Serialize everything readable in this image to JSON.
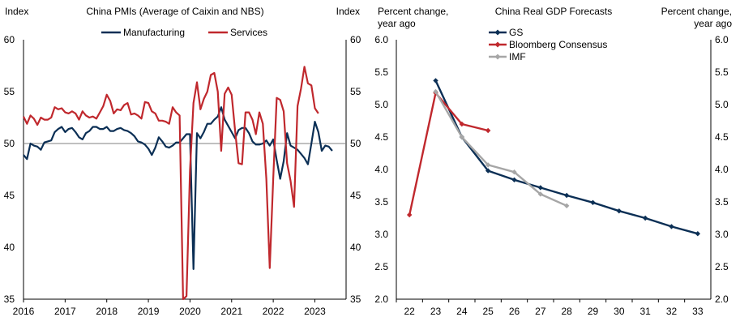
{
  "chart_data": [
    {
      "type": "line",
      "title": "China PMIs (Average of Caixin and NBS)",
      "ylabel_left": "Index",
      "ylabel_right": "Index",
      "ylim": [
        35,
        60
      ],
      "yticks": [
        "35",
        "40",
        "45",
        "50",
        "55",
        "60"
      ],
      "xlim": [
        2016.0,
        2023.75
      ],
      "xticks": [
        {
          "label": "2016",
          "x": 2016
        },
        {
          "label": "2017",
          "x": 2017
        },
        {
          "label": "2018",
          "x": 2018
        },
        {
          "label": "2019",
          "x": 2019
        },
        {
          "label": "2020",
          "x": 2020
        },
        {
          "label": "2021",
          "x": 2021
        },
        {
          "label": "2022",
          "x": 2022
        },
        {
          "label": "2023",
          "x": 2023
        }
      ],
      "reference_line": 50,
      "grid": false,
      "legend": "top-center",
      "series": [
        {
          "name": "Manufacturing",
          "color": "#0b2f55",
          "start": 2016.0,
          "step": 0.0833333,
          "values": [
            48.9,
            48.5,
            50.0,
            49.8,
            49.7,
            49.4,
            50.1,
            50.2,
            50.3,
            51.1,
            51.4,
            51.6,
            51.1,
            51.4,
            51.5,
            51.1,
            50.6,
            50.4,
            51.0,
            51.2,
            51.6,
            51.6,
            51.4,
            51.4,
            51.6,
            51.2,
            51.2,
            51.4,
            51.5,
            51.3,
            51.2,
            51.0,
            50.7,
            50.2,
            50.1,
            49.9,
            49.5,
            48.9,
            49.6,
            50.6,
            50.2,
            49.7,
            49.6,
            49.8,
            50.1,
            50.1,
            50.5,
            50.9,
            50.9,
            37.9,
            51.0,
            50.5,
            51.1,
            51.9,
            51.9,
            52.3,
            52.6,
            53.5,
            52.3,
            51.7,
            51.1,
            50.5,
            51.3,
            51.5,
            51.5,
            51.0,
            50.2,
            49.9,
            49.9,
            50.0,
            50.3,
            49.8,
            50.4,
            48.4,
            46.6,
            48.3,
            51.0,
            49.8,
            49.6,
            49.4,
            49.0,
            48.6,
            48.0,
            50.0,
            52.1,
            51.1,
            49.3,
            49.8,
            49.7,
            49.3
          ]
        },
        {
          "name": "Services",
          "color": "#c0282d",
          "start": 2016.0,
          "step": 0.0833333,
          "values": [
            52.6,
            51.9,
            52.7,
            52.4,
            51.8,
            52.5,
            52.3,
            52.3,
            52.5,
            53.5,
            53.3,
            53.4,
            53.0,
            52.9,
            53.1,
            52.9,
            52.3,
            53.1,
            52.7,
            52.5,
            52.6,
            52.4,
            53.0,
            53.6,
            54.7,
            54.1,
            52.9,
            53.3,
            53.2,
            53.7,
            53.9,
            52.8,
            52.9,
            52.7,
            52.4,
            54.0,
            53.9,
            53.1,
            52.9,
            52.2,
            52.2,
            52.1,
            51.9,
            53.5,
            53.0,
            52.7,
            35.0,
            35.3,
            47.4,
            53.9,
            55.9,
            53.3,
            54.3,
            55.0,
            56.6,
            56.8,
            55.0,
            49.3,
            54.8,
            55.4,
            54.7,
            51.2,
            48.1,
            48.0,
            53.0,
            53.0,
            52.3,
            50.9,
            53.0,
            51.9,
            46.6,
            38.0,
            46.6,
            54.4,
            54.2,
            53.1,
            48.1,
            46.4,
            43.9,
            53.6,
            55.3,
            57.4,
            55.8,
            55.6,
            53.4,
            52.9
          ]
        }
      ]
    },
    {
      "type": "line",
      "title": "China Real GDP Forecasts",
      "ylabel_left": "Percent change, year ago",
      "ylabel_right": "Percent change, year ago",
      "ylim": [
        2.0,
        6.0
      ],
      "yticks": [
        "2.0",
        "2.5",
        "3.0",
        "3.5",
        "4.0",
        "4.5",
        "5.0",
        "5.5",
        "6.0"
      ],
      "categories": [
        "22",
        "23",
        "24",
        "25",
        "26",
        "27",
        "28",
        "29",
        "30",
        "31",
        "32",
        "33"
      ],
      "grid": false,
      "legend": "top-center",
      "series": [
        {
          "name": "GS",
          "color": "#0b2f55",
          "x": [
            23,
            24,
            25,
            26,
            27,
            28,
            29,
            30,
            31,
            32,
            33
          ],
          "values": [
            5.37,
            4.5,
            3.98,
            3.84,
            3.72,
            3.6,
            3.49,
            3.36,
            3.25,
            3.12,
            3.01
          ]
        },
        {
          "name": "Bloomberg Consensus",
          "color": "#c0282d",
          "x": [
            22,
            23,
            24,
            25
          ],
          "values": [
            3.3,
            5.18,
            4.7,
            4.6
          ]
        },
        {
          "name": "IMF",
          "color": "#a6a6a6",
          "x": [
            23,
            24,
            25,
            26,
            27,
            28
          ],
          "values": [
            5.2,
            4.5,
            4.07,
            3.96,
            3.62,
            3.44
          ]
        }
      ]
    }
  ]
}
